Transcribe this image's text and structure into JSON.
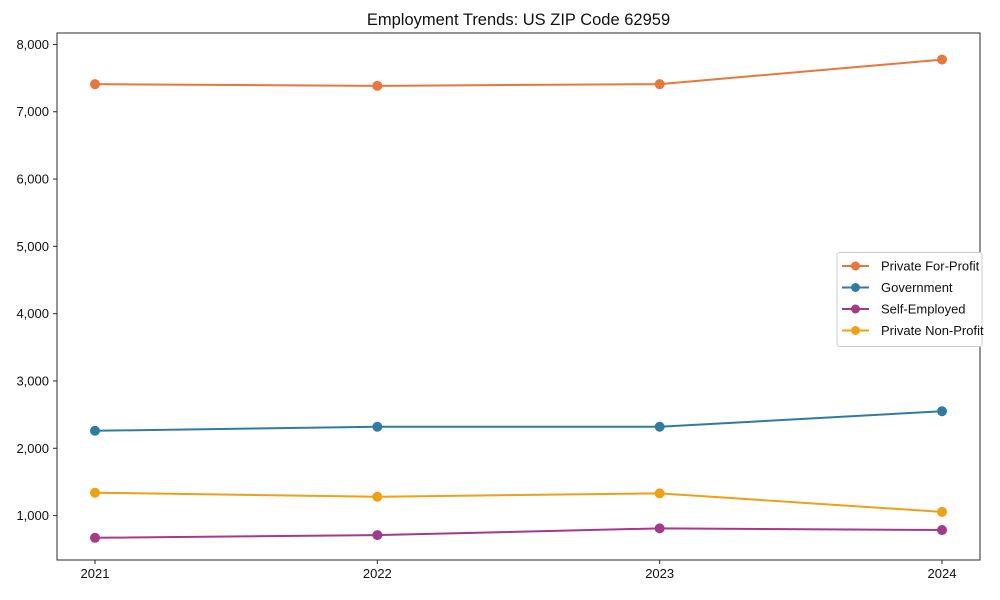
{
  "chart_data": {
    "type": "line",
    "title": "Employment Trends: US ZIP Code 62959",
    "xlabel": "",
    "ylabel": "",
    "x_tick_labels": [
      "2021",
      "2022",
      "2023",
      "2024"
    ],
    "y_tick_values": [
      1000,
      2000,
      3000,
      4000,
      5000,
      6000,
      7000,
      8000
    ],
    "y_tick_labels": [
      "1,000",
      "2,000",
      "3,000",
      "4,000",
      "5,000",
      "6,000",
      "7,000",
      "8,000"
    ],
    "ylim": [
      340,
      8170
    ],
    "grid": false,
    "legend_position": "center right",
    "categories": [
      2021,
      2022,
      2023,
      2024
    ],
    "series": [
      {
        "name": "Private For-Profit",
        "color": "#e8763d",
        "values": [
          7410,
          7385,
          7410,
          7775
        ]
      },
      {
        "name": "Government",
        "color": "#2f7ca2",
        "values": [
          2260,
          2320,
          2320,
          2550
        ]
      },
      {
        "name": "Self-Employed",
        "color": "#a43b8a",
        "values": [
          670,
          710,
          810,
          785
        ]
      },
      {
        "name": "Private Non-Profit",
        "color": "#f0a011",
        "values": [
          1340,
          1280,
          1330,
          1055
        ]
      }
    ],
    "colors": {
      "axis": "#2b2b2b",
      "legend_border": "#cccccc",
      "background": "#ffffff"
    }
  }
}
